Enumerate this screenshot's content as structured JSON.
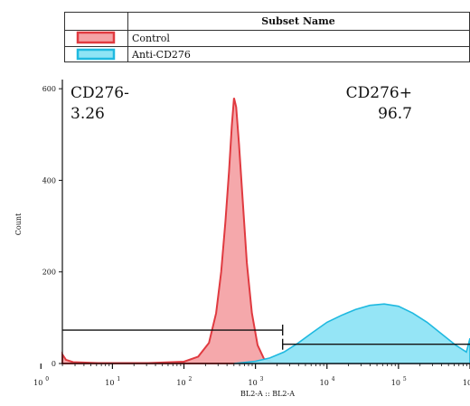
{
  "legend": {
    "header": "Subset Name",
    "entries": [
      {
        "label": "Control",
        "fill": "#f4a3a6",
        "stroke": "#e03a40"
      },
      {
        "label": "Anti-CD276",
        "fill": "#8fe4f5",
        "stroke": "#1fb9e0"
      }
    ]
  },
  "gates": [
    {
      "name": "CD276-",
      "value": "3.26",
      "range": [
        0.3,
        3.38
      ],
      "level": 73
    },
    {
      "name": "CD276+",
      "value": "96.7",
      "range": [
        3.38,
        6.0
      ],
      "level": 42
    }
  ],
  "chart_data": {
    "type": "area",
    "xlabel": "BL2-A :: BL2-A",
    "ylabel": "Count",
    "x_scale": "log",
    "xlim": [
      0.3,
      6.0
    ],
    "ylim": [
      0,
      620
    ],
    "y_ticks": [
      0,
      200,
      400,
      600
    ],
    "x_ticks": [
      {
        "base": "10",
        "exp": "0",
        "log": 0
      },
      {
        "base": "10",
        "exp": "1",
        "log": 1
      },
      {
        "base": "10",
        "exp": "2",
        "log": 2
      },
      {
        "base": "10",
        "exp": "3",
        "log": 3
      },
      {
        "base": "10",
        "exp": "4",
        "log": 4
      },
      {
        "base": "10",
        "exp": "5",
        "log": 5
      },
      {
        "base": "10",
        "exp": "6",
        "log": 6
      }
    ],
    "series": [
      {
        "name": "Control",
        "fill": "#f4a3a6",
        "stroke": "#e03a40",
        "points": [
          [
            0.3,
            20
          ],
          [
            0.35,
            8
          ],
          [
            0.45,
            3
          ],
          [
            0.8,
            1
          ],
          [
            1.5,
            1
          ],
          [
            2.0,
            4
          ],
          [
            2.2,
            15
          ],
          [
            2.35,
            45
          ],
          [
            2.45,
            110
          ],
          [
            2.52,
            200
          ],
          [
            2.58,
            310
          ],
          [
            2.63,
            420
          ],
          [
            2.67,
            520
          ],
          [
            2.7,
            580
          ],
          [
            2.73,
            560
          ],
          [
            2.77,
            480
          ],
          [
            2.82,
            360
          ],
          [
            2.88,
            220
          ],
          [
            2.95,
            110
          ],
          [
            3.03,
            40
          ],
          [
            3.12,
            10
          ],
          [
            3.25,
            2
          ],
          [
            3.5,
            0
          ],
          [
            6.0,
            0
          ]
        ]
      },
      {
        "name": "Anti-CD276",
        "fill": "#8fe4f5",
        "stroke": "#1fb9e0",
        "points": [
          [
            2.7,
            0
          ],
          [
            3.0,
            5
          ],
          [
            3.2,
            12
          ],
          [
            3.4,
            25
          ],
          [
            3.6,
            45
          ],
          [
            3.8,
            68
          ],
          [
            4.0,
            90
          ],
          [
            4.2,
            105
          ],
          [
            4.4,
            118
          ],
          [
            4.6,
            127
          ],
          [
            4.8,
            130
          ],
          [
            5.0,
            125
          ],
          [
            5.2,
            110
          ],
          [
            5.4,
            90
          ],
          [
            5.6,
            65
          ],
          [
            5.8,
            40
          ],
          [
            5.9,
            30
          ],
          [
            5.95,
            25
          ],
          [
            6.0,
            55
          ]
        ]
      }
    ]
  }
}
